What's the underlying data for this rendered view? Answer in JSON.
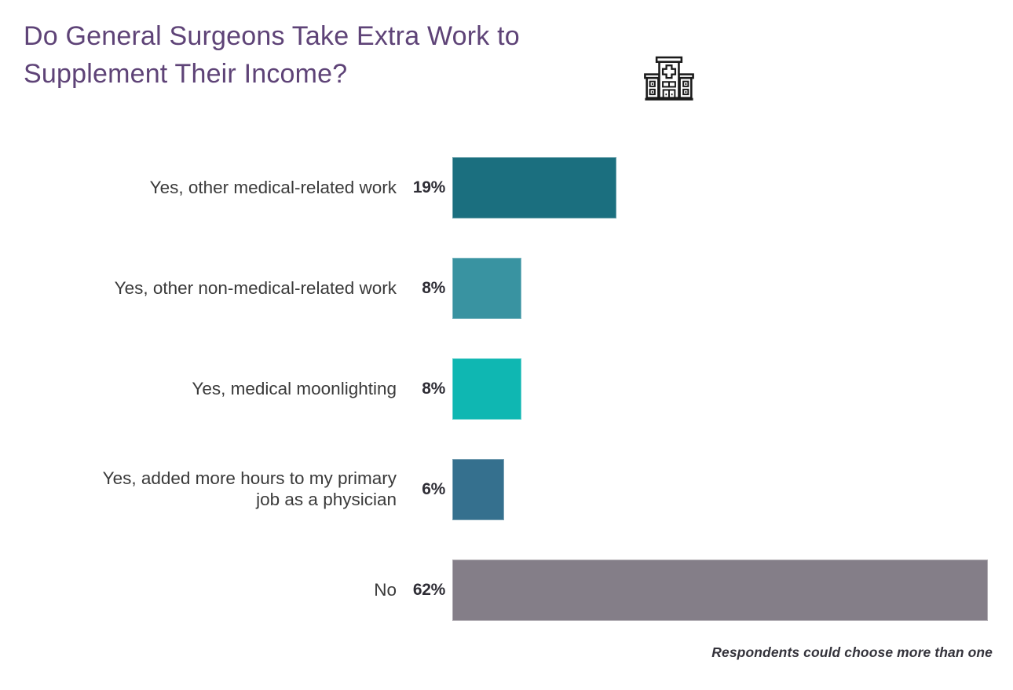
{
  "header": {
    "title_lines": [
      "Do General Surgeons Take Extra Work to",
      "Supplement Their Income?"
    ],
    "title_color": "#5e4377",
    "icon": "hospital-icon"
  },
  "chart_data": {
    "type": "bar",
    "orientation": "horizontal",
    "title": "Do General Surgeons Take Extra Work to Supplement Their Income?",
    "categories": [
      "Yes, other medical-related work",
      "Yes, other non-medical-related work",
      "Yes, medical moonlighting",
      "Yes, added more hours to my primary job as a physician",
      "No"
    ],
    "values": [
      19,
      8,
      8,
      6,
      62
    ],
    "value_labels": [
      "19%",
      "8%",
      "8%",
      "6%",
      "62%"
    ],
    "unit": "%",
    "bar_colors": [
      "#1b6f7f",
      "#3993a1",
      "#0fb7b2",
      "#35708e",
      "#847e88"
    ],
    "axis_max": 62,
    "grid": false,
    "legend": false,
    "note": "Respondents could choose more than one"
  },
  "rows": [
    {
      "label": "Yes, other medical-related work",
      "value": 19,
      "value_label": "19%",
      "color": "#1b6f7f"
    },
    {
      "label": "Yes, other non-medical-related work",
      "value": 8,
      "value_label": "8%",
      "color": "#3993a1"
    },
    {
      "label": "Yes, medical moonlighting",
      "value": 8,
      "value_label": "8%",
      "color": "#0fb7b2"
    },
    {
      "label": "Yes, added more hours to my primary\njob as a physician",
      "value": 6,
      "value_label": "6%",
      "color": "#35708e"
    },
    {
      "label": "No",
      "value": 62,
      "value_label": "62%",
      "color": "#847e88"
    }
  ],
  "footer": {
    "note": "Respondents could choose more than one"
  }
}
